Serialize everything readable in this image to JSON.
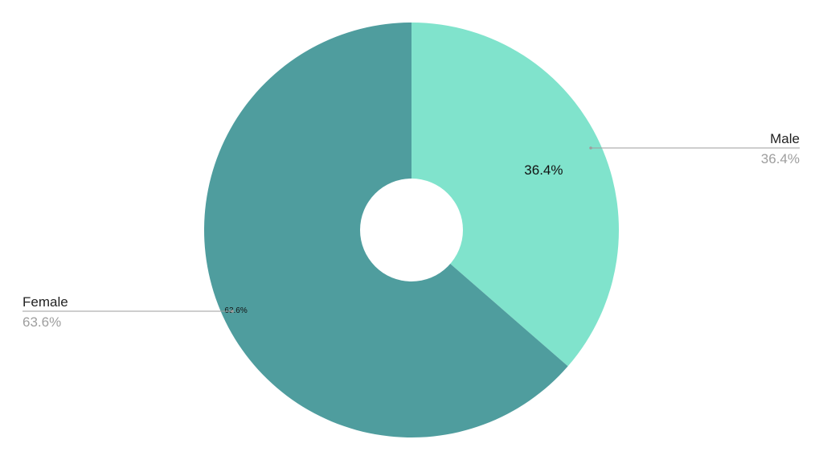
{
  "chart_data": {
    "type": "pie",
    "donut": true,
    "start_angle_deg": 0,
    "direction": "clockwise",
    "slices": [
      {
        "name": "Male",
        "value": 36.4,
        "label": "36.4%",
        "color": "#80e3cc"
      },
      {
        "name": "Female",
        "value": 63.6,
        "label": "63.6%",
        "color": "#4f9d9e"
      }
    ],
    "legend": "outside-callouts",
    "title": ""
  }
}
